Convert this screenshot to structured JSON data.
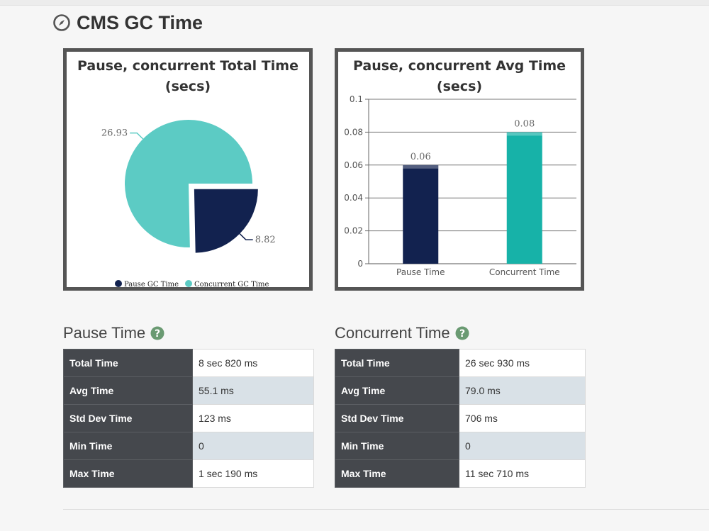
{
  "section": {
    "title": "CMS GC Time",
    "icon": "compass-icon"
  },
  "chart_data": [
    {
      "type": "pie",
      "title": "Pause, concurrent Total Time (secs)",
      "title_lines": [
        "Pause, concurrent Total Time",
        "(secs)"
      ],
      "slices": [
        {
          "name": "Pause GC Time",
          "value": 8.82,
          "label": "8.82",
          "color": "#12224f",
          "exploded": true
        },
        {
          "name": "Concurrent GC Time",
          "value": 26.93,
          "label": "26.93",
          "color": "#5ccbc4",
          "exploded": false
        }
      ],
      "legend": [
        "Pause GC Time",
        "Concurrent GC Time"
      ]
    },
    {
      "type": "bar",
      "title": "Pause, concurrent Avg Time (secs)",
      "title_lines": [
        "Pause, concurrent Avg Time",
        "(secs)"
      ],
      "categories": [
        "Pause Time",
        "Concurrent Time"
      ],
      "values": [
        0.06,
        0.08
      ],
      "value_labels": [
        "0.06",
        "0.08"
      ],
      "colors": [
        "#12224f",
        "#17b2a8"
      ],
      "ylim": [
        0,
        0.1
      ],
      "yticks": [
        "0",
        "0.02",
        "0.04",
        "0.06",
        "0.08",
        "0.1"
      ],
      "grid": true
    }
  ],
  "pause_table": {
    "heading": "Pause Time",
    "rows": [
      {
        "key": "Total Time",
        "value": "8 sec 820 ms"
      },
      {
        "key": "Avg Time",
        "value": "55.1 ms"
      },
      {
        "key": "Std Dev Time",
        "value": "123 ms"
      },
      {
        "key": "Min Time",
        "value": "0"
      },
      {
        "key": "Max Time",
        "value": "1 sec 190 ms"
      }
    ]
  },
  "concurrent_table": {
    "heading": "Concurrent Time",
    "rows": [
      {
        "key": "Total Time",
        "value": "26 sec 930 ms"
      },
      {
        "key": "Avg Time",
        "value": "79.0 ms"
      },
      {
        "key": "Std Dev Time",
        "value": "706 ms"
      },
      {
        "key": "Min Time",
        "value": "0"
      },
      {
        "key": "Max Time",
        "value": "11 sec 710 ms"
      }
    ]
  }
}
